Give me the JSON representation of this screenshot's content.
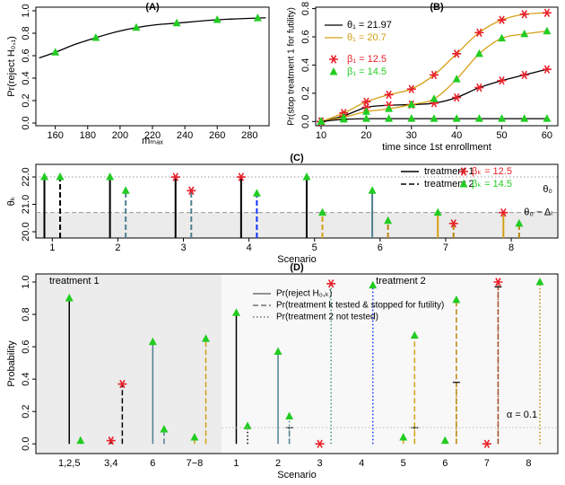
{
  "chart_data": [
    {
      "type": "line",
      "title": "(A)",
      "x_label": "mₘₐₓ",
      "y_label": "Pr(reject H₀,₁)",
      "xlim": [
        148,
        292
      ],
      "xticks": [
        160,
        180,
        200,
        220,
        240,
        260,
        280
      ],
      "ylim": [
        -0.024,
        1.032
      ],
      "yticks": [
        {
          "value": 0,
          "label": "0.0"
        },
        {
          "value": 0.2,
          "label": "0.2"
        },
        {
          "value": 0.4,
          "label": "0.4"
        },
        {
          "value": 0.6,
          "label": "0.6"
        },
        {
          "value": 0.8,
          "label": "0.8"
        },
        {
          "value": 1,
          "label": "1.0"
        }
      ],
      "series": [
        {
          "style": "line",
          "color": "#000000",
          "x": [
            150,
            160,
            172,
            185,
            197,
            210,
            222,
            235,
            247,
            260,
            272,
            285,
            290
          ],
          "values": [
            0.58,
            0.63,
            0.7,
            0.76,
            0.81,
            0.85,
            0.875,
            0.89,
            0.905,
            0.92,
            0.928,
            0.935,
            0.937
          ]
        },
        {
          "style": "points",
          "color": "#22cc22",
          "marker": "triangle",
          "x": [
            160,
            185,
            210,
            235,
            260,
            285
          ],
          "values": [
            0.63,
            0.76,
            0.85,
            0.89,
            0.92,
            0.935
          ]
        }
      ]
    },
    {
      "type": "line",
      "title": "(B)",
      "x_label": "time since 1st enrollment",
      "y_label": "Pr(stop treatment 1 for futility)",
      "xlim": [
        8.8,
        62.4
      ],
      "xticks": [
        10,
        20,
        30,
        40,
        50,
        60
      ],
      "ylim": [
        -0.03,
        0.81
      ],
      "yticks": [
        {
          "value": 0,
          "label": "0.0"
        },
        {
          "value": 0.2,
          "label": "0.2"
        },
        {
          "value": 0.4,
          "label": "0.4"
        },
        {
          "value": 0.6,
          "label": "0.6"
        },
        {
          "value": 0.8,
          "label": "0.8"
        }
      ],
      "marker_colors": {
        "star": "#e8202a",
        "triangle": "#22cc22"
      },
      "legend": [
        {
          "label": "θ₁ = 21.97",
          "kind": "line",
          "color": "#000000"
        },
        {
          "label": "θ₁ = 20.7",
          "kind": "line",
          "color": "#d4a017"
        },
        {
          "label": "β₁ = 12.5",
          "kind": "star"
        },
        {
          "label": "β₁ = 14.5",
          "kind": "triangle"
        }
      ],
      "series": [
        {
          "style": "line",
          "color": "#000000",
          "marker": "star",
          "x": [
            10,
            15,
            20,
            25,
            30,
            35,
            40,
            45,
            50,
            55,
            60
          ],
          "values": [
            0,
            0.04,
            0.1,
            0.115,
            0.12,
            0.13,
            0.17,
            0.24,
            0.29,
            0.33,
            0.37
          ]
        },
        {
          "style": "line",
          "color": "#d4a017",
          "marker": "star",
          "x": [
            10,
            15,
            20,
            25,
            30,
            35,
            40,
            45,
            50,
            55,
            60
          ],
          "values": [
            0,
            0.06,
            0.14,
            0.19,
            0.23,
            0.33,
            0.48,
            0.63,
            0.72,
            0.76,
            0.77
          ]
        },
        {
          "style": "line",
          "color": "#d4a017",
          "marker": "triangle",
          "x": [
            10,
            15,
            20,
            25,
            30,
            35,
            40,
            45,
            50,
            55,
            60
          ],
          "values": [
            0,
            0.03,
            0.07,
            0.09,
            0.12,
            0.16,
            0.3,
            0.48,
            0.59,
            0.62,
            0.64
          ]
        },
        {
          "style": "line",
          "color": "#000000",
          "marker": "triangle",
          "x": [
            10,
            15,
            20,
            25,
            30,
            35,
            40,
            45,
            50,
            55,
            60
          ],
          "values": [
            0,
            0.015,
            0.02,
            0.02,
            0.02,
            0.02,
            0.02,
            0.02,
            0.02,
            0.02,
            0.02
          ]
        }
      ]
    },
    {
      "type": "lollipop",
      "title": "(C)",
      "x_label": "Scenario",
      "y_label": "θₖ",
      "xlim": [
        0.75,
        8.71
      ],
      "xticks": [
        1,
        2,
        3,
        4,
        5,
        6,
        7,
        8
      ],
      "ylim": [
        19.77,
        22.46
      ],
      "yticks": [
        {
          "value": 20,
          "label": "20.0"
        },
        {
          "value": 21,
          "label": "21.0"
        },
        {
          "value": 22,
          "label": "22.0"
        }
      ],
      "marker_colors": {
        "star": "#e8202a",
        "triangle": "#22cc22"
      },
      "reference_lines": [
        {
          "value": 22,
          "label": "θ₀"
        },
        {
          "value": 20.7,
          "label": "θ₀ − Δₗ"
        }
      ],
      "legend": [
        {
          "label": "βₖ = 12.5",
          "kind": "star"
        },
        {
          "label": "βₖ = 14.5",
          "kind": "triangle"
        }
      ],
      "series": [
        {
          "name": "treatment 1",
          "dash": "solid",
          "values": [
            22,
            22,
            22,
            22,
            22,
            21.5,
            20.7,
            20.7
          ],
          "colors": [
            "#000000",
            "#000000",
            "#000000",
            "#000000",
            "#000000",
            "#4f7f8f",
            "#d4a017",
            "#d4a017"
          ],
          "markers": [
            "triangle",
            "triangle",
            "star",
            "star",
            "triangle",
            "triangle",
            "triangle",
            "star"
          ]
        },
        {
          "name": "treatment 2",
          "dash": "dashed",
          "values": [
            22,
            21.5,
            21.5,
            21.4,
            20.7,
            20.4,
            20.3,
            20.3
          ],
          "colors": [
            "#000000",
            "#4f7f8f",
            "#4f7f8f",
            "#1030ff",
            "#d4a017",
            "#b8860b",
            "#b8860b",
            "#b8860b"
          ],
          "markers": [
            "triangle",
            "triangle",
            "star",
            "triangle",
            "triangle",
            "triangle",
            "star",
            "triangle"
          ]
        }
      ]
    },
    {
      "type": "stem",
      "title": "(D)",
      "x_label": "Scenario",
      "y_label": "Probability",
      "ylim": [
        -0.06,
        1.05
      ],
      "yticks": [
        {
          "value": 0,
          "label": "0.0"
        },
        {
          "value": 0.2,
          "label": "0.2"
        },
        {
          "value": 0.4,
          "label": "0.4"
        },
        {
          "value": 0.6,
          "label": "0.6"
        },
        {
          "value": 0.8,
          "label": "0.8"
        },
        {
          "value": 1,
          "label": "1.0"
        }
      ],
      "marker_colors": {
        "star": "#e8202a",
        "triangle": "#22cc22"
      },
      "alpha_line": {
        "value": 0.1,
        "label": "α = 0.1"
      },
      "legend": [
        {
          "label": "Pr(reject H₀,ₖ)",
          "dash": "solid"
        },
        {
          "label": "Pr(treatment k tested & stopped for futility)",
          "dash": "dashed"
        },
        {
          "label": "Pr(treatment 2 not tested)",
          "dash": "dotted"
        }
      ],
      "groups": [
        {
          "label": "treatment 1",
          "categories": [
            "1,2,5",
            "3,4",
            "6",
            "7−8"
          ],
          "reject": [
            0.9,
            0.02,
            0.63,
            0.04
          ],
          "futility": [
            0.02,
            0.37,
            0.09,
            0.65
          ],
          "not_tested": [
            null,
            null,
            null,
            null
          ],
          "colors": [
            "#000000",
            "#000000",
            "#4f7f8f",
            "#d4a017"
          ],
          "markers": [
            "triangle",
            "star",
            "triangle",
            "triangle"
          ]
        },
        {
          "label": "treatment 2",
          "categories": [
            "1",
            "2",
            "3",
            "4",
            "5",
            "6",
            "7",
            "8"
          ],
          "reject": [
            0.81,
            0.57,
            0,
            null,
            0.04,
            0.02,
            0,
            null
          ],
          "futility": [
            null,
            0.1,
            null,
            null,
            0.67,
            0.89,
            0.97,
            null
          ],
          "not_tested": [
            0.11,
            0.17,
            0.99,
            0.98,
            0.1,
            0.38,
            1,
            1
          ],
          "colors": [
            "#000000",
            "#4f7f8f",
            "#3a9a6a",
            "#1030ff",
            "#d4a017",
            "#b8860b",
            "#a0522d",
            "#b8860b"
          ],
          "markers": [
            "triangle",
            "triangle",
            "star",
            "triangle",
            "triangle",
            "triangle",
            "star",
            "triangle"
          ]
        }
      ]
    }
  ]
}
